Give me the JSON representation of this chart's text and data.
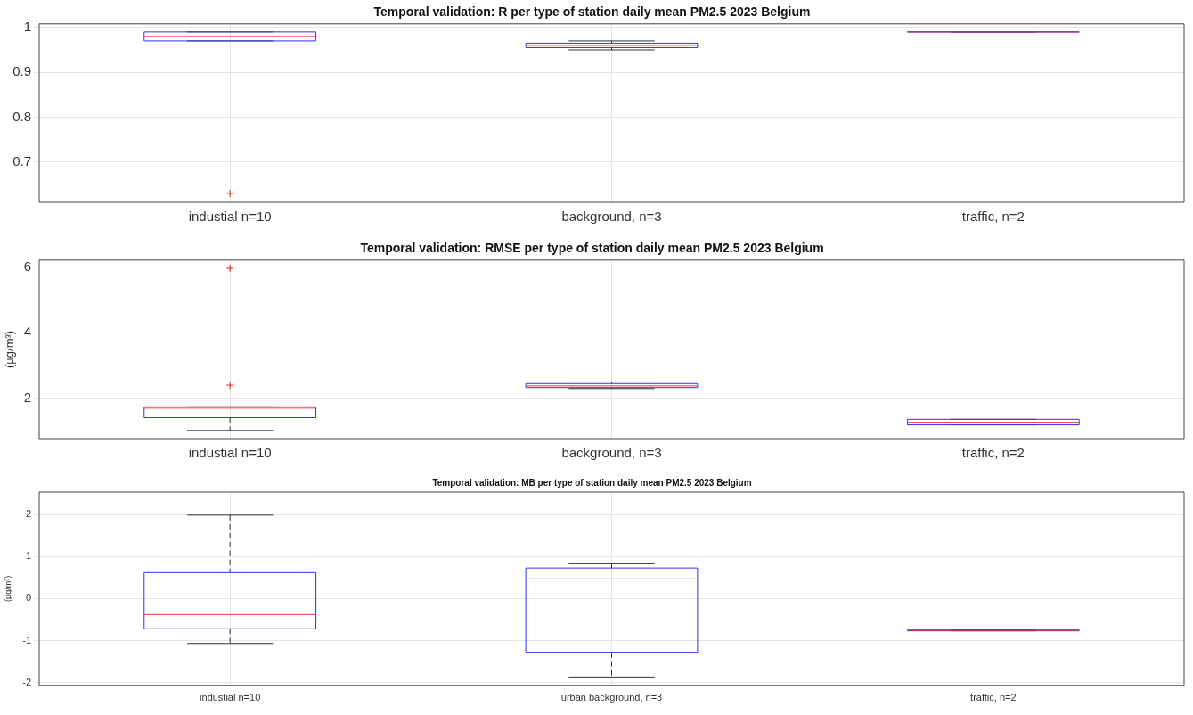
{
  "chart_data": [
    {
      "type": "box",
      "title": "Temporal validation: R per type of station daily mean PM2.5 2023 Belgium",
      "categories": [
        "industial n=10",
        "background, n=3",
        "traffic, n=2"
      ],
      "boxes": [
        {
          "low": 0.97,
          "q1": 0.97,
          "median": 0.98,
          "q3": 0.99,
          "high": 0.99,
          "outliers": [
            0.63
          ]
        },
        {
          "low": 0.95,
          "q1": 0.955,
          "median": 0.96,
          "q3": 0.965,
          "high": 0.97
        },
        {
          "low": 0.99,
          "q1": 0.99,
          "median": 0.99,
          "q3": 0.99,
          "high": 0.99
        }
      ],
      "ylim": [
        0.61,
        1.008
      ],
      "yticks": [
        0.7,
        0.8,
        0.9,
        1
      ],
      "grid": true
    },
    {
      "type": "box",
      "title": "Temporal validation: RMSE per type of station daily mean PM2.5 2023 Belgium",
      "ylabel": "(µg/m³)",
      "categories": [
        "industial n=10",
        "background, n=3",
        "traffic, n=2"
      ],
      "boxes": [
        {
          "low": 1.02,
          "q1": 1.41,
          "median": 1.7,
          "q3": 1.74,
          "high": 1.74,
          "outliers": [
            2.4,
            5.97
          ]
        },
        {
          "low": 2.3,
          "q1": 2.33,
          "median": 2.38,
          "q3": 2.45,
          "high": 2.5
        },
        {
          "low": 1.19,
          "q1": 1.19,
          "median": 1.27,
          "q3": 1.36,
          "high": 1.36
        }
      ],
      "ylim": [
        0.77,
        6.22
      ],
      "yticks": [
        2,
        4,
        6
      ],
      "grid": true
    },
    {
      "type": "box",
      "title": "Temporal validation: MB per type of station daily mean PM2.5 2023 Belgium",
      "ylabel": "(µg/m³)",
      "categories": [
        "industial n=10",
        "urban background, n=3",
        "traffic, n=2"
      ],
      "boxes": [
        {
          "low": -1.07,
          "q1": -0.72,
          "median": -0.38,
          "q3": 0.62,
          "high": 1.99
        },
        {
          "low": -1.87,
          "q1": -1.28,
          "median": 0.47,
          "q3": 0.73,
          "high": 0.83
        },
        {
          "low": -0.77,
          "q1": -0.77,
          "median": -0.76,
          "q3": -0.75,
          "high": -0.75
        }
      ],
      "ylim": [
        -2.07,
        2.54
      ],
      "yticks": [
        -2,
        -1,
        0,
        1,
        2
      ],
      "grid": true
    }
  ]
}
